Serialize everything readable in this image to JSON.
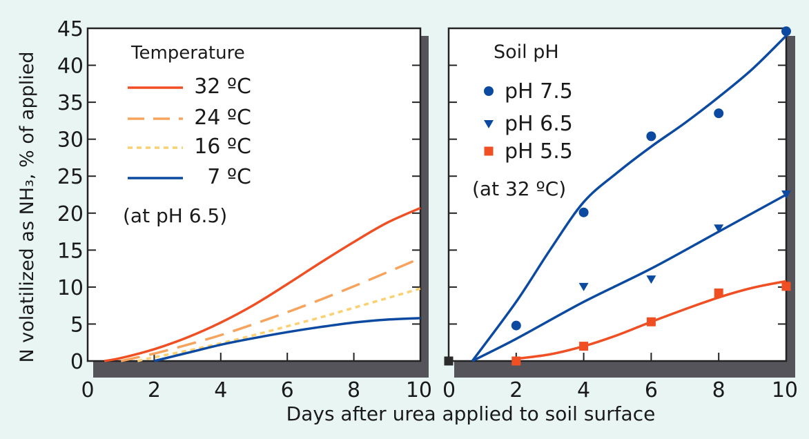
{
  "colors": {
    "background": "#e9f5f3",
    "panel": "#ffffff",
    "shadow": "#55545a",
    "orange_red": "#f04e23",
    "orange": "#f7a35c",
    "yellow": "#fbd070",
    "blue": "#0b4aa0",
    "square_marker": "#2b2b2b"
  },
  "y_axis_label": "N volatilized as NH₃, % of applied",
  "x_axis_label": "Days after urea applied to soil surface",
  "chart_data": [
    {
      "type": "line",
      "legend_title": "Temperature",
      "legend_note": "(at pH 6.5)",
      "x_ticks": [
        0,
        2,
        4,
        6,
        8,
        10
      ],
      "y_ticks": [
        0,
        5,
        10,
        15,
        20,
        25,
        30,
        35,
        40,
        45
      ],
      "xlim": [
        0,
        10
      ],
      "ylim": [
        0,
        45
      ],
      "series": [
        {
          "name": "32 ºC",
          "style": "solid",
          "color": "#f04e23",
          "x": [
            0.5,
            1,
            2,
            3,
            4,
            5,
            6,
            7,
            8,
            9,
            10
          ],
          "y": [
            0,
            0.4,
            1.6,
            3.2,
            5.2,
            7.6,
            10.4,
            13.3,
            16.1,
            18.7,
            20.7
          ]
        },
        {
          "name": "24 ºC",
          "style": "dashed",
          "color": "#f7a35c",
          "x": [
            1,
            2,
            3,
            4,
            5,
            6,
            7,
            8,
            9,
            10
          ],
          "y": [
            0,
            1.0,
            2.2,
            3.5,
            5.0,
            6.6,
            8.3,
            10.1,
            12.0,
            13.9
          ]
        },
        {
          "name": "16 ºC",
          "style": "dotted",
          "color": "#fbd070",
          "x": [
            1.5,
            2,
            3,
            4,
            5,
            6,
            7,
            8,
            9,
            10
          ],
          "y": [
            0,
            0.5,
            1.4,
            2.4,
            3.5,
            4.7,
            5.9,
            7.2,
            8.5,
            9.8
          ]
        },
        {
          "name": "7 ºC",
          "style": "solid",
          "color": "#0b4aa0",
          "x": [
            2,
            3,
            4,
            5,
            6,
            7,
            8,
            9,
            10
          ],
          "y": [
            0,
            1.1,
            2.2,
            3.1,
            3.9,
            4.6,
            5.2,
            5.6,
            5.8
          ]
        }
      ]
    },
    {
      "type": "scatter",
      "legend_title": "Soil pH",
      "legend_note": "(at 32 ºC)",
      "x_ticks": [
        0,
        2,
        4,
        6,
        8,
        10
      ],
      "y_ticks": [
        0,
        5,
        10,
        15,
        20,
        25,
        30,
        35,
        40,
        45
      ],
      "xlim": [
        0,
        10
      ],
      "ylim": [
        0,
        45
      ],
      "origin_point": {
        "x": 0,
        "y": 0,
        "marker": "square",
        "color": "#2b2b2b"
      },
      "series": [
        {
          "name": "pH 7.5",
          "marker": "circle",
          "color": "#0b4aa0",
          "points": {
            "x": [
              2,
              4,
              6,
              8,
              10
            ],
            "y": [
              4.8,
              20.1,
              30.4,
              33.5,
              44.6
            ]
          },
          "fit": {
            "color": "#0b4aa0",
            "x": [
              0.7,
              2,
              3,
              4,
              5,
              6,
              7,
              8,
              9,
              10
            ],
            "y": [
              0,
              8.0,
              15.0,
              21.5,
              25.5,
              29.0,
              32.2,
              35.7,
              39.5,
              44.0
            ]
          }
        },
        {
          "name": "pH 6.5",
          "marker": "triangle-down",
          "color": "#0b4aa0",
          "points": {
            "x": [
              4,
              6,
              8,
              10
            ],
            "y": [
              10.1,
              11.1,
              18.0,
              22.6
            ]
          },
          "fit": {
            "color": "#0b4aa0",
            "x": [
              0.7,
              2,
              4,
              6,
              8,
              10
            ],
            "y": [
              0,
              3.0,
              8.0,
              12.5,
              17.5,
              22.5
            ]
          }
        },
        {
          "name": "pH 5.5",
          "marker": "square",
          "color": "#f04e23",
          "points": {
            "x": [
              2,
              4,
              6,
              8,
              10
            ],
            "y": [
              0,
              2.0,
              5.3,
              9.2,
              10.1
            ]
          },
          "fit": {
            "color": "#f04e23",
            "x": [
              2,
              3,
              4,
              5,
              6,
              7,
              8,
              9,
              10
            ],
            "y": [
              0.3,
              0.9,
              2.0,
              3.5,
              5.3,
              7.0,
              8.6,
              9.9,
              10.8
            ]
          }
        }
      ]
    }
  ]
}
